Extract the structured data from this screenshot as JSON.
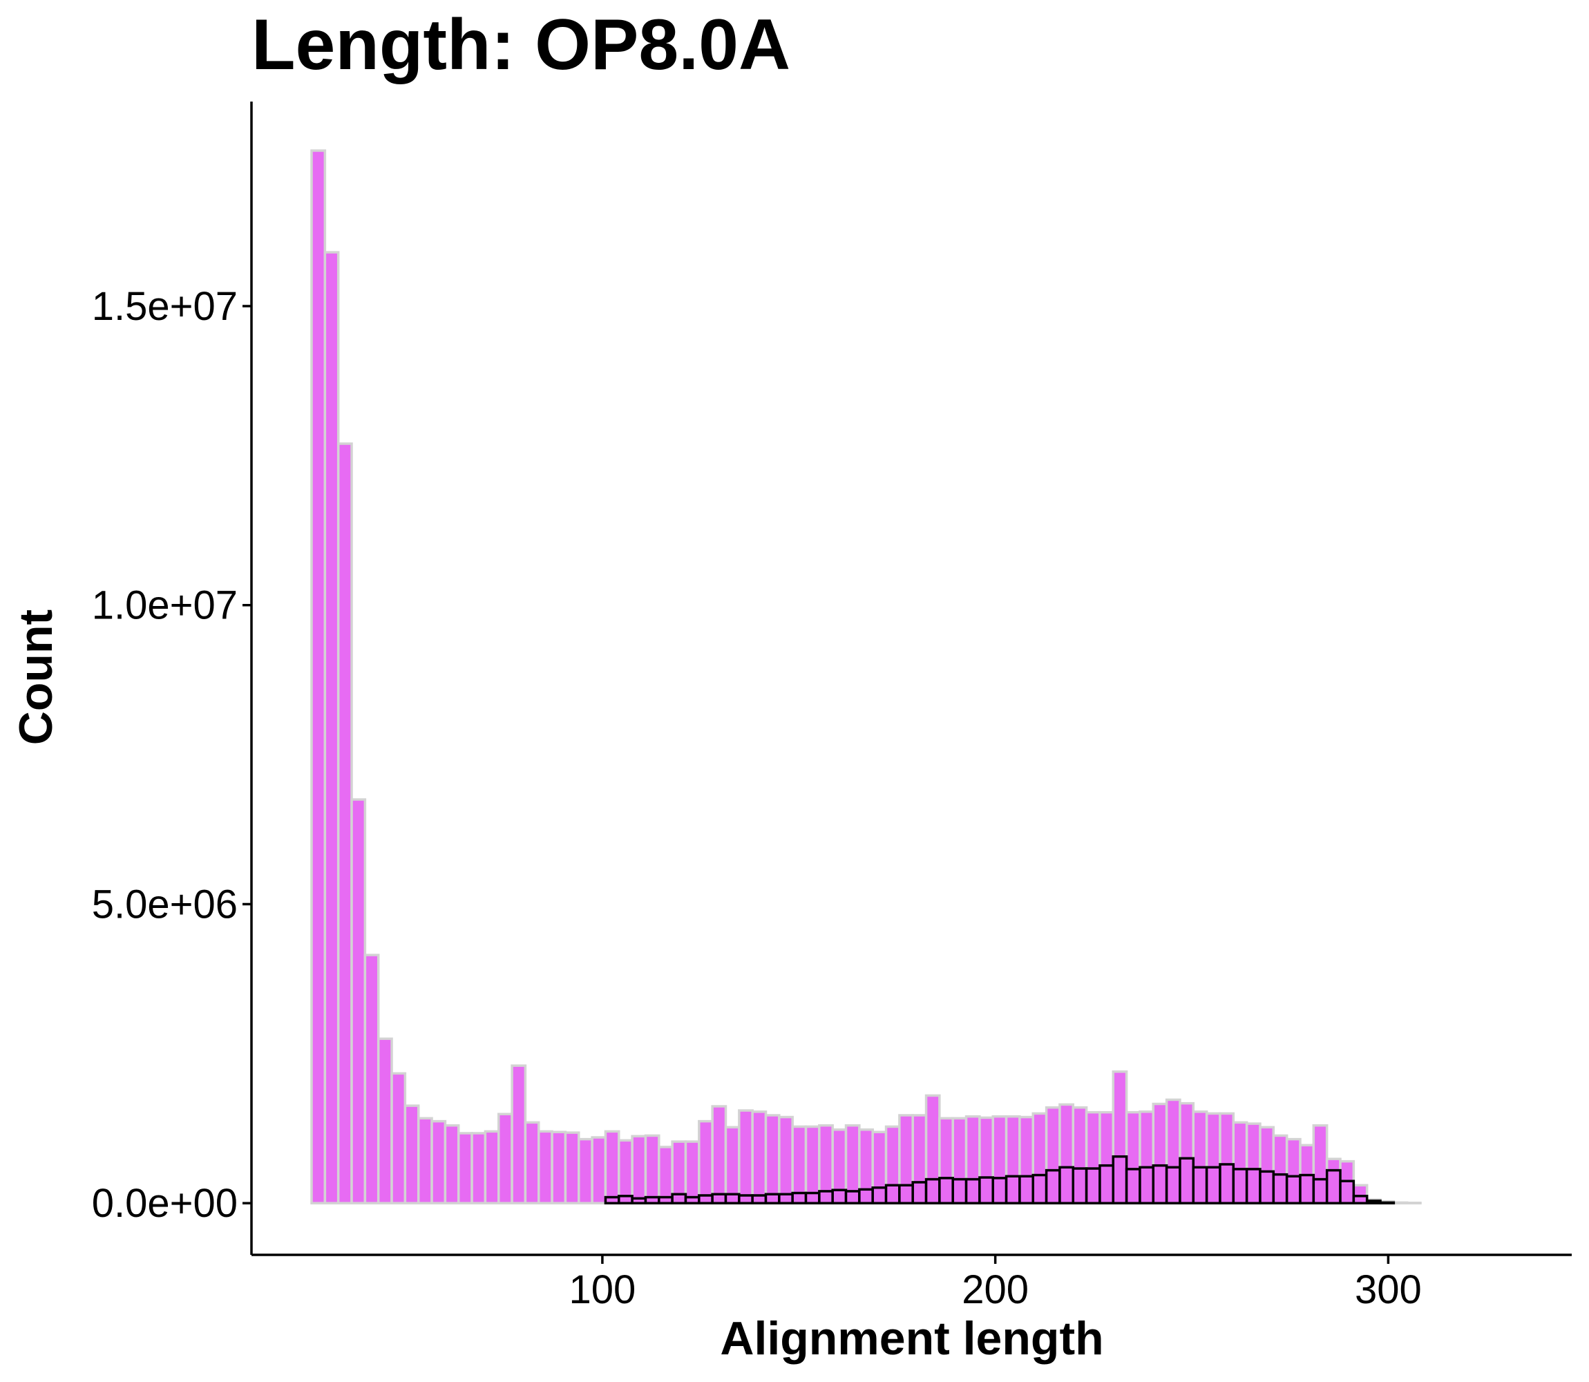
{
  "chart_data": {
    "type": "histogram",
    "title": "Length: OP8.0A",
    "x_label": "Alignment length",
    "y_label": "Count",
    "bins": [
      26,
      29.4,
      32.8,
      36.2,
      39.6,
      43,
      46.4,
      49.8,
      53.2,
      56.6,
      60,
      63.4,
      66.8,
      70.2,
      73.6,
      77,
      80.4,
      83.8,
      87.2,
      90.6,
      94,
      97.4,
      100.8,
      104.2,
      107.6,
      111,
      114.4,
      117.8,
      121.2,
      124.6,
      128,
      131.4,
      134.8,
      138.2,
      141.6,
      145,
      148.4,
      151.8,
      155.2,
      158.6,
      162,
      165.4,
      168.8,
      172.2,
      175.6,
      179,
      182.4,
      185.8,
      189.2,
      192.6,
      196,
      199.4,
      202.8,
      206.2,
      209.6,
      213,
      216.4,
      219.8,
      223.2,
      226.6,
      230,
      233.4,
      236.8,
      240.2,
      243.6,
      247,
      250.4,
      253.8,
      257.2,
      260.6,
      264,
      267.4,
      270.8,
      274.2,
      277.6,
      281,
      284.4,
      287.8,
      291.2,
      294.6,
      298,
      301.4,
      304.8,
      308.2,
      311.6,
      315,
      318.4,
      321.8,
      325.2,
      328.6,
      332
    ],
    "series": [
      {
        "color": "#e76bf3",
        "outline": "#d3d3d3",
        "values": [
          17600000,
          15900000,
          12700000,
          6750000,
          4150000,
          2750000,
          2170000,
          1630000,
          1420000,
          1370000,
          1300000,
          1170000,
          1170000,
          1200000,
          1490000,
          2300000,
          1350000,
          1200000,
          1190000,
          1180000,
          1070000,
          1100000,
          1200000,
          1050000,
          1120000,
          1130000,
          940000,
          1030000,
          1030000,
          1370000,
          1620000,
          1270000,
          1550000,
          1530000,
          1470000,
          1440000,
          1280000,
          1280000,
          1300000,
          1230000,
          1300000,
          1230000,
          1190000,
          1280000,
          1470000,
          1470000,
          1800000,
          1420000,
          1420000,
          1450000,
          1430000,
          1450000,
          1450000,
          1440000,
          1500000,
          1600000,
          1650000,
          1600000,
          1520000,
          1520000,
          2200000,
          1520000,
          1530000,
          1660000,
          1730000,
          1670000,
          1530000,
          1500000,
          1500000,
          1350000,
          1330000,
          1270000,
          1130000,
          1070000,
          970000,
          1300000,
          740000,
          700000,
          300000,
          60000,
          30000,
          10000,
          5000,
          0,
          0,
          0,
          0,
          0,
          0,
          0
        ]
      },
      {
        "color": "#e76bf3",
        "outline": "#000000",
        "values": [
          0,
          0,
          0,
          0,
          0,
          0,
          0,
          0,
          0,
          0,
          0,
          0,
          0,
          0,
          0,
          0,
          0,
          0,
          0,
          0,
          0,
          0,
          100000,
          120000,
          80000,
          100000,
          100000,
          150000,
          100000,
          130000,
          150000,
          150000,
          130000,
          130000,
          150000,
          150000,
          170000,
          170000,
          200000,
          220000,
          200000,
          230000,
          260000,
          300000,
          300000,
          350000,
          400000,
          420000,
          400000,
          400000,
          430000,
          420000,
          450000,
          450000,
          470000,
          550000,
          600000,
          580000,
          580000,
          630000,
          780000,
          570000,
          600000,
          630000,
          600000,
          750000,
          600000,
          600000,
          650000,
          570000,
          570000,
          530000,
          480000,
          450000,
          470000,
          400000,
          550000,
          370000,
          120000,
          40000,
          10000,
          0,
          0,
          0,
          0,
          0,
          0,
          0,
          0,
          0
        ]
      }
    ],
    "xlim": [
      10.7,
      346.7
    ],
    "ylim": [
      -864000,
      18420000
    ],
    "xticks": [
      100,
      200,
      300
    ],
    "yticks": [
      {
        "value": 0,
        "label": "0.0e+00"
      },
      {
        "value": 5000000,
        "label": "5.0e+06"
      },
      {
        "value": 10000000,
        "label": "1.0e+07"
      },
      {
        "value": 15000000,
        "label": "1.5e+07"
      }
    ],
    "grid": false
  }
}
